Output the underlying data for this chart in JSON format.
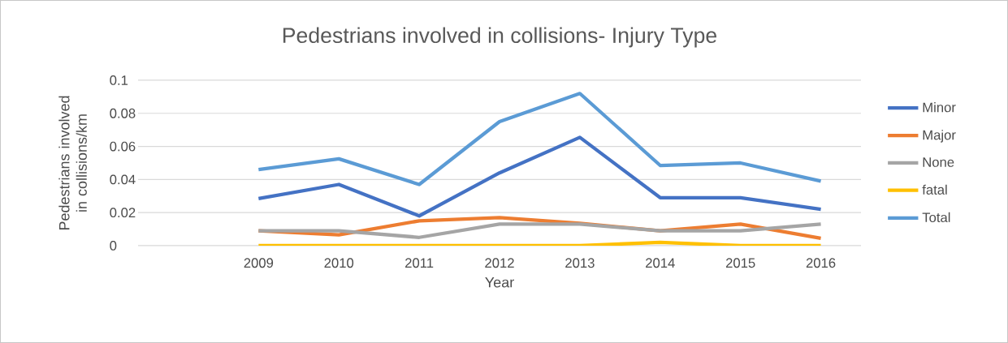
{
  "chart_data": {
    "type": "line",
    "title": "Pedestrians involved in collisions- Injury Type",
    "xlabel": "Year",
    "ylabel": "Pedestrians involved in collisions/km",
    "categories": [
      null,
      "2009",
      "2010",
      "2011",
      "2012",
      "2013",
      "2014",
      "2015",
      "2016"
    ],
    "series": [
      {
        "name": "Minor",
        "color": "#4472c4",
        "values": [
          null,
          0.0285,
          0.037,
          0.018,
          0.044,
          0.0655,
          0.029,
          0.029,
          0.022
        ]
      },
      {
        "name": "Major",
        "color": "#ed7d31",
        "values": [
          null,
          0.009,
          0.0065,
          0.015,
          0.017,
          0.0135,
          0.009,
          0.013,
          0.0045
        ]
      },
      {
        "name": "None",
        "color": "#a5a5a5",
        "values": [
          null,
          0.009,
          0.009,
          0.005,
          0.013,
          0.013,
          0.009,
          0.009,
          0.013
        ]
      },
      {
        "name": "fatal",
        "color": "#ffc000",
        "values": [
          null,
          0,
          0,
          0,
          0,
          0,
          0.002,
          0,
          0
        ]
      },
      {
        "name": "Total",
        "color": "#5b9bd5",
        "values": [
          null,
          0.046,
          0.0525,
          0.037,
          0.075,
          0.092,
          0.0485,
          0.05,
          0.039
        ]
      }
    ],
    "ylim": [
      0,
      0.1
    ],
    "yticks": [
      0,
      0.02,
      0.04,
      0.06,
      0.08,
      0.1
    ],
    "grid": "y",
    "legend": "right",
    "marker": "none",
    "line_style": "solid"
  }
}
